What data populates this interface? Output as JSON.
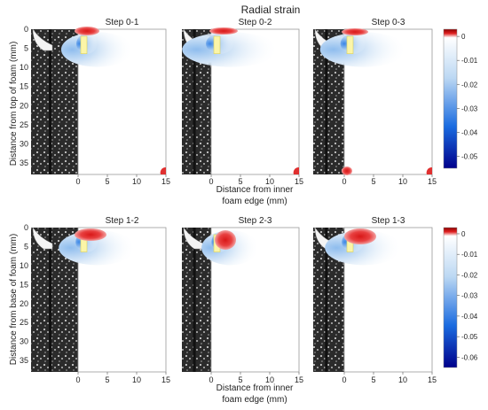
{
  "title": "Radial strain",
  "ylabel_top": "Distance from top of foam (mm)",
  "ylabel_bottom": "Distance from base of foam (mm)",
  "xlabel_line1": "Distance from inner",
  "xlabel_line2": "foam edge (mm)",
  "colors": {
    "neg_max": "#00008b",
    "neg_mid": "#1a6be0",
    "neg_light": "#bcd8f3",
    "zero": "#ffffff",
    "pos": "#e02020",
    "pos_dark": "#8b0000",
    "foam_yellow": "#fbf5a8",
    "ct_dark": "#111111"
  },
  "chart_data": [
    {
      "type": "heatmap",
      "row": "top",
      "panels": [
        "Step 0-1",
        "Step 0-2",
        "Step 0-3"
      ],
      "x_ticks": [
        "0",
        "5",
        "10",
        "15"
      ],
      "y_ticks": [
        "0",
        "5",
        "10",
        "15",
        "20",
        "25",
        "30",
        "35"
      ],
      "xlim": [
        0,
        15
      ],
      "ylim": [
        0,
        38
      ],
      "colorbar": {
        "ticks": [
          "0",
          "-0.01",
          "-0.02",
          "-0.03",
          "-0.04",
          "-0.05"
        ],
        "range": [
          -0.055,
          0.003
        ]
      }
    },
    {
      "type": "heatmap",
      "row": "bottom",
      "panels": [
        "Step 1-2",
        "Step 2-3",
        "Step 1-3"
      ],
      "x_ticks": [
        "0",
        "5",
        "10",
        "15"
      ],
      "y_ticks": [
        "0",
        "5",
        "10",
        "15",
        "20",
        "25",
        "30",
        "35"
      ],
      "xlim": [
        0,
        15
      ],
      "ylim": [
        0,
        38
      ],
      "colorbar": {
        "ticks": [
          "0",
          "-0.01",
          "-0.02",
          "-0.03",
          "-0.04",
          "-0.05",
          "-0.06"
        ],
        "range": [
          -0.065,
          0.003
        ]
      }
    }
  ]
}
